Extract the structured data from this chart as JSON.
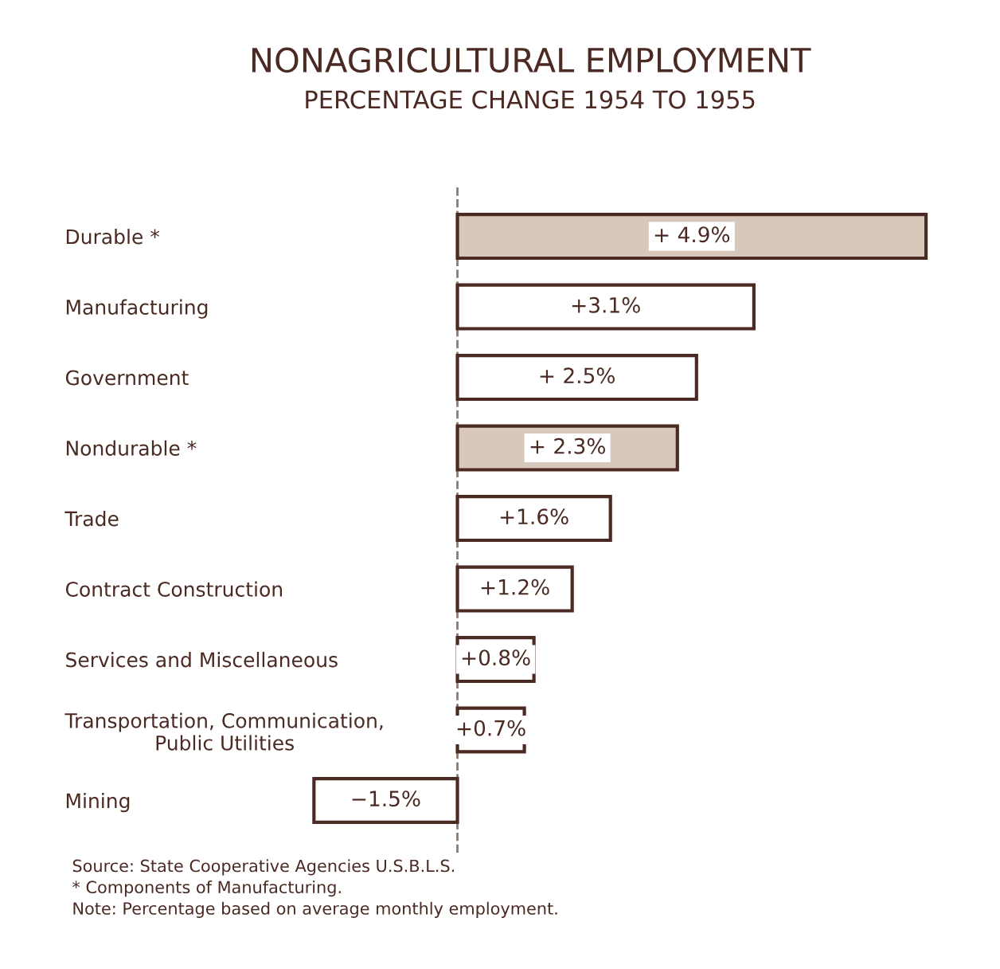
{
  "chart_data": {
    "type": "bar",
    "orientation": "horizontal",
    "title": "NONAGRICULTURAL EMPLOYMENT",
    "subtitle": "PERCENTAGE CHANGE 1954 TO 1955",
    "categories": [
      "Durable *",
      "Manufacturing",
      "Government",
      "Nondurable *",
      "Trade",
      "Contract Construction",
      "Services and Miscellaneous",
      "Transportation, Communication,\nPublic Utilities",
      "Mining"
    ],
    "values": [
      4.9,
      3.1,
      2.5,
      2.3,
      1.6,
      1.2,
      0.8,
      0.7,
      -1.5
    ],
    "value_labels": [
      "+ 4.9%",
      "+3.1%",
      "+ 2.5%",
      "+ 2.3%",
      "+1.6%",
      "+1.2%",
      "+0.8%",
      "+0.7%",
      "−1.5%"
    ],
    "colors": [
      "#d8c8bc",
      "#ffffff",
      "#ffffff",
      "#d8c8bc",
      "#ffffff",
      "#ffffff",
      "#ffffff",
      "#ffffff",
      "#ffffff"
    ],
    "tick_labels": "y",
    "grid": false,
    "ref_lines": [
      {
        "axis": "x",
        "value": 0,
        "line_style": "dashed",
        "color": "#8a7a70"
      }
    ],
    "annotations": [
      "Source: State Cooperative Agencies U.S.B.L.S.",
      "* Components of Manufacturing.",
      "Note: Percentage based on average monthly employment."
    ]
  }
}
